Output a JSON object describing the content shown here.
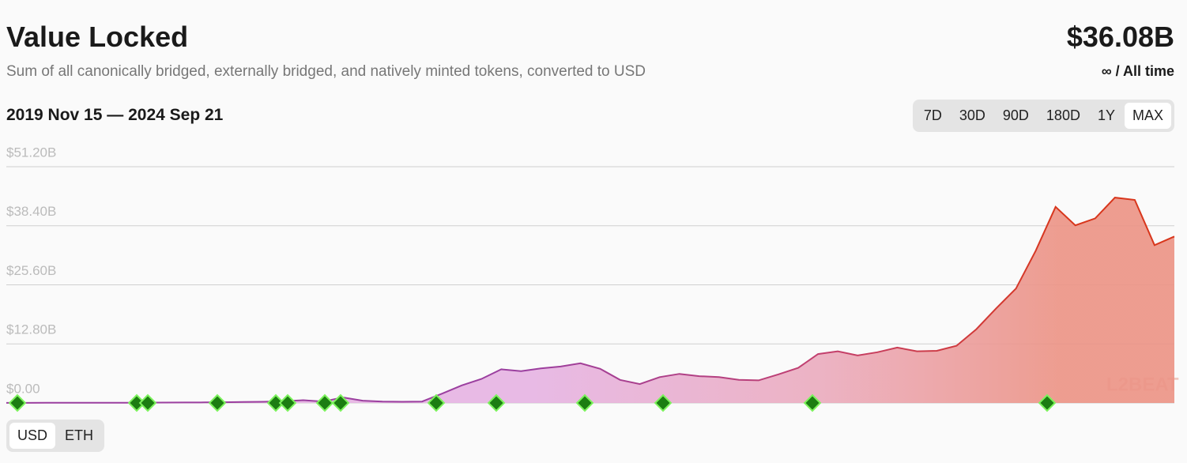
{
  "header": {
    "title": "Value Locked",
    "subtitle": "Sum of all canonically bridged, externally bridged, and natively minted tokens, converted to USD",
    "value": "$36.08B",
    "range_label": "∞ / All time"
  },
  "date_range": "2019 Nov 15 — 2024 Sep 21",
  "range_buttons": [
    "7D",
    "30D",
    "90D",
    "180D",
    "1Y",
    "MAX"
  ],
  "active_range": 5,
  "unit_buttons": [
    "USD",
    "ETH"
  ],
  "active_unit": 0,
  "watermark": "L2BEAT",
  "chart_data": {
    "type": "area",
    "values": [
      0.02,
      0.02,
      0.03,
      0.03,
      0.04,
      0.04,
      0.05,
      0.06,
      0.08,
      0.1,
      0.12,
      0.15,
      0.2,
      0.25,
      0.4,
      0.6,
      0.3,
      1.2,
      0.5,
      0.3,
      0.25,
      0.3,
      2.0,
      3.8,
      5.2,
      7.3,
      6.9,
      7.5,
      7.9,
      8.6,
      7.4,
      5.0,
      4.1,
      5.6,
      6.3,
      5.8,
      5.6,
      5.0,
      4.9,
      6.2,
      7.6,
      10.6,
      11.2,
      10.3,
      11.0,
      12.0,
      11.2,
      11.3,
      12.4,
      16.0,
      20.5,
      24.8,
      33.0,
      42.5,
      38.5,
      40.0,
      44.5,
      44.0,
      34.2,
      36.08
    ],
    "ylim": [
      0,
      51.2
    ],
    "yticks": [
      {
        "value": 0,
        "label": "$0.00"
      },
      {
        "value": 12.8,
        "label": "$12.80B"
      },
      {
        "value": 25.6,
        "label": "$25.60B"
      },
      {
        "value": 38.4,
        "label": "$38.40B"
      },
      {
        "value": 51.2,
        "label": "$51.20B"
      }
    ],
    "grid": true,
    "line_colors": [
      "#9b3f9f",
      "#c3406e",
      "#d8361c"
    ],
    "fill_colors": [
      "#e6b3e3",
      "#ebabbd",
      "#ec9385"
    ]
  }
}
